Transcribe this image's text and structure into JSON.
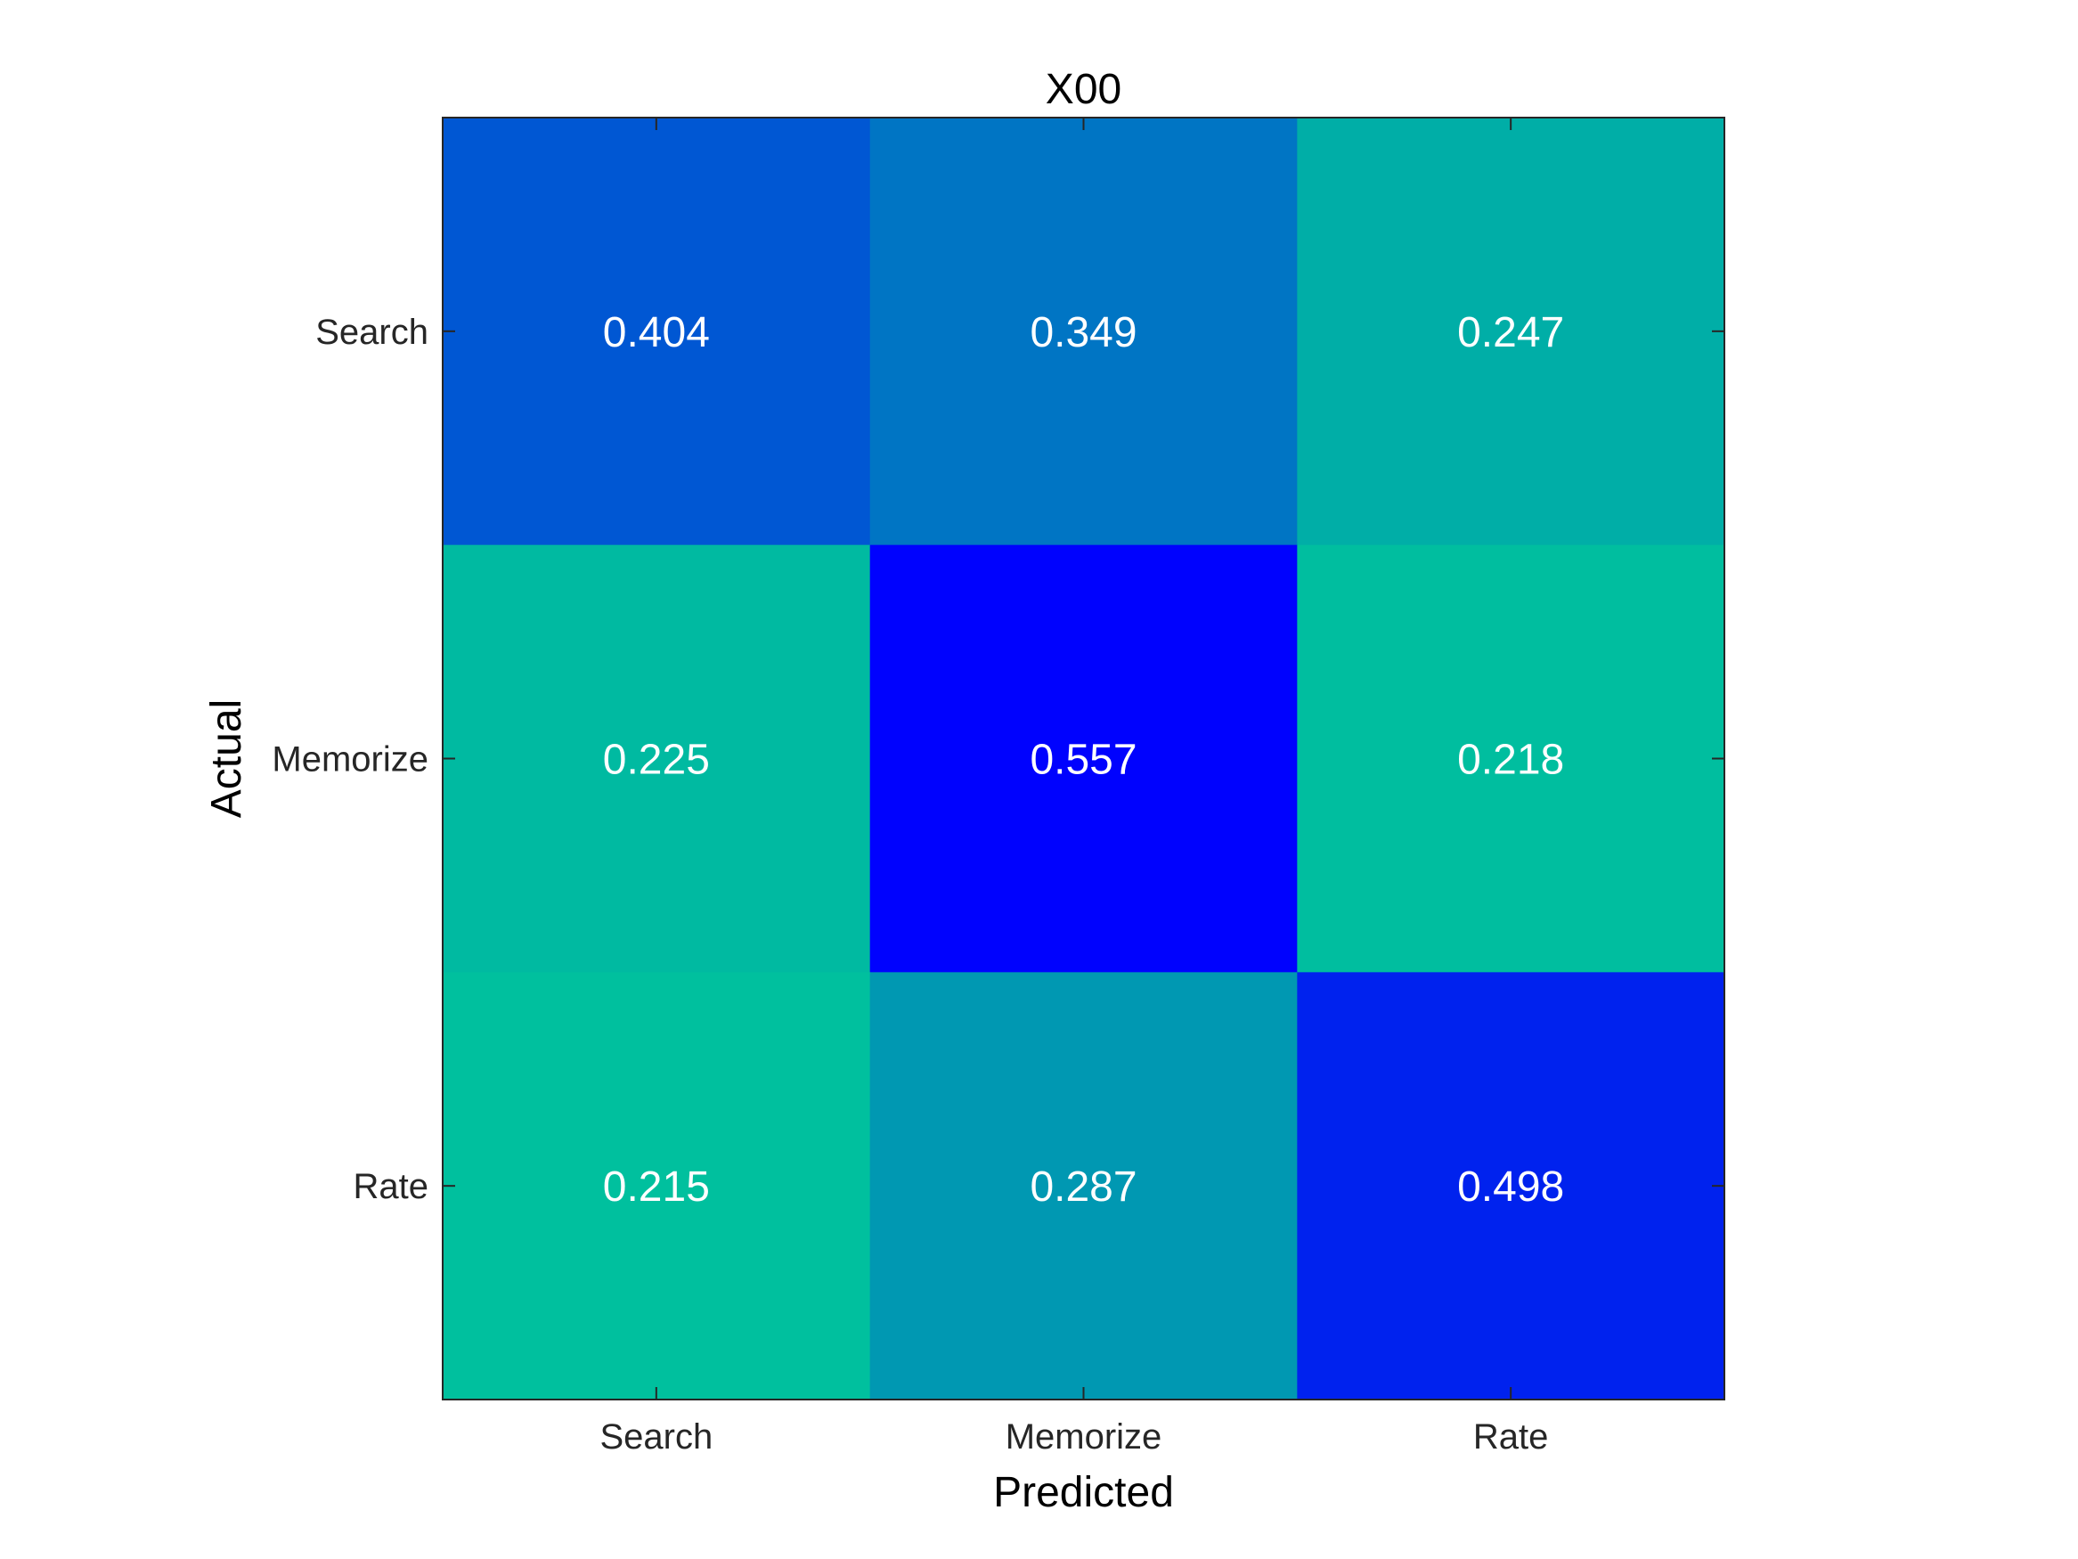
{
  "chart_data": {
    "type": "heatmap",
    "title": "X00",
    "xlabel": "Predicted",
    "ylabel": "Actual",
    "x_categories": [
      "Search",
      "Memorize",
      "Rate"
    ],
    "y_categories": [
      "Search",
      "Memorize",
      "Rate"
    ],
    "values": [
      [
        0.404,
        0.349,
        0.247
      ],
      [
        0.225,
        0.557,
        0.218
      ],
      [
        0.215,
        0.287,
        0.498
      ]
    ],
    "value_labels": [
      [
        "0.404",
        "0.349",
        "0.247"
      ],
      [
        "0.225",
        "0.557",
        "0.218"
      ],
      [
        "0.215",
        "0.287",
        "0.498"
      ]
    ],
    "colormap": {
      "low_color": "#00c89a",
      "high_color": "#0000ff",
      "range": [
        0.2,
        0.56
      ]
    },
    "grid": false,
    "legend": "none"
  }
}
